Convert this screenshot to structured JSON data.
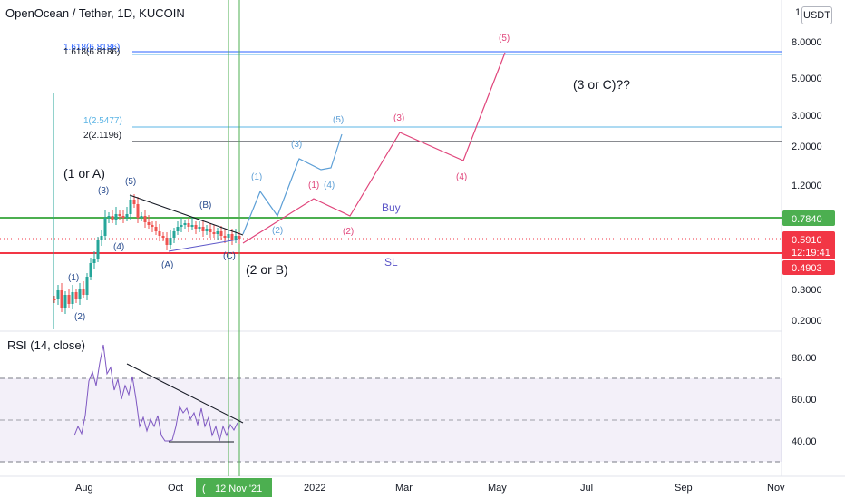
{
  "header": {
    "title": "OpenOcean / Tether, 1D, KUCOIN",
    "currency": "USDT",
    "corner_label": "1"
  },
  "rsi": {
    "title": "RSI (14, close)",
    "ticks": [
      "80.00",
      "60.00",
      "40.00"
    ]
  },
  "xaxis": {
    "ticks": [
      "Aug",
      "Oct",
      "2022",
      "Mar",
      "May",
      "Jul",
      "Sep",
      "Nov"
    ],
    "cursor_label": "12 Nov '21",
    "cursor_prefix": "("
  },
  "price_axis": {
    "ticks": [
      "8.0000",
      "5.0000",
      "3.0000",
      "2.0000",
      "1.2000",
      "0.3000",
      "0.2000"
    ],
    "badges": [
      {
        "text": "0.7840",
        "color": "#4caf50"
      },
      {
        "text": "0.5910",
        "color": "#f23645"
      },
      {
        "text": "12:19:41",
        "color": "#f23645"
      },
      {
        "text": "0.4903",
        "color": "#f23645"
      }
    ]
  },
  "fib_labels": [
    "1.618(6.8186)",
    "1.618(6.8186)",
    "1(2.5477)",
    "2(2.1196)"
  ],
  "annotations": {
    "wave1_or_A": "(1 or A)",
    "wave2_or_B": "(2 or B)",
    "wave3_or_C": "(3 or C)??",
    "buy": "Buy",
    "sl": "SL"
  },
  "wave_labels": {
    "dark_blue": [
      "(1)",
      "(2)",
      "(3)",
      "(4)",
      "(5)",
      "(A)",
      "(B)",
      "(C)"
    ],
    "light_blue": [
      "(1)",
      "(2)",
      "(3)",
      "(4)",
      "(5)"
    ],
    "pink": [
      "(1)",
      "(2)",
      "(3)",
      "(4)",
      "(5)"
    ]
  },
  "colors": {
    "buy_line": "#4caf50",
    "stop_line": "#f23645",
    "fib_blue": "#2962ff",
    "fib_light": "#5bb4e5",
    "wave_light_blue": "#5d9fd6",
    "wave_pink": "#e0457b",
    "rsi_line": "#7e57c2",
    "cursor": "#4caf50"
  }
}
